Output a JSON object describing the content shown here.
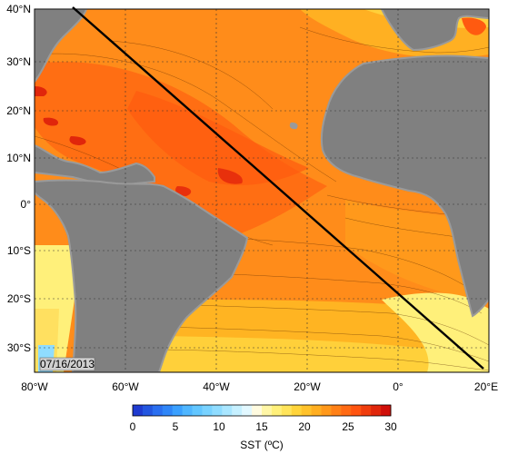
{
  "map": {
    "date_stamp": "07/16/2013",
    "lat_labels": [
      "40°N",
      "30°N",
      "20°N",
      "10°N",
      "0°",
      "10°S",
      "20°S",
      "30°S"
    ],
    "lon_labels": [
      "80°W",
      "60°W",
      "40°W",
      "20°W",
      "0°",
      "20°E"
    ],
    "colors": {
      "land": "#808080",
      "coast_shadow": "#9a9a9a",
      "section_line": "#000000",
      "grid": "#333333"
    }
  },
  "colorbar": {
    "label": "SST (ºC)",
    "ticks": [
      "0",
      "5",
      "10",
      "15",
      "20",
      "25",
      "30"
    ],
    "colors": [
      "#1f3bd0",
      "#2356e0",
      "#2a6ff0",
      "#2f86f8",
      "#3aa0ff",
      "#4fb6ff",
      "#62c6ff",
      "#78d2ff",
      "#8fdcff",
      "#a9e6ff",
      "#c6f0ff",
      "#e2f8ff",
      "#fffbe0",
      "#fff6a6",
      "#fff07a",
      "#ffe45a",
      "#ffd43a",
      "#ffc22a",
      "#ffae20",
      "#ff981a",
      "#ff8016",
      "#ff6a13",
      "#ff5410",
      "#f03d0d",
      "#e0260b",
      "#d00f09"
    ]
  }
}
